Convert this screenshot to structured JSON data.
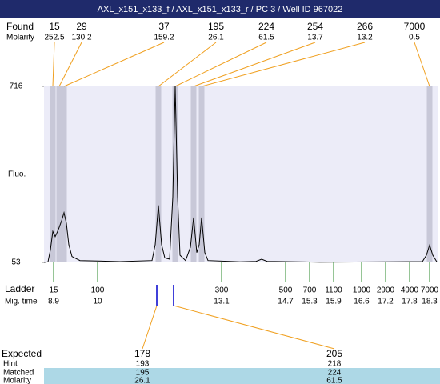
{
  "header": {
    "title": "AXL_x151_x133_f / AXL_x151_x133_r / PC 3 / Well ID 967022"
  },
  "chart_data": {
    "type": "line",
    "y_label": "Fluo.",
    "color": "#000000",
    "x": [
      8.66,
      8.76,
      8.82,
      8.88,
      8.94,
      9.0,
      9.04,
      9.1,
      9.16,
      9.22,
      9.28,
      9.36,
      9.56,
      10.56,
      11.36,
      11.44,
      11.52,
      11.6,
      11.68,
      11.8,
      11.88,
      11.94,
      12.0,
      12.06,
      12.2,
      12.32,
      12.4,
      12.48,
      12.54,
      12.6,
      12.68,
      12.76,
      13.56,
      13.96,
      14.1,
      14.24,
      15.56,
      18.12,
      18.22,
      18.3,
      18.38,
      18.48
    ],
    "values": [
      53,
      55,
      100,
      170,
      150,
      170,
      185,
      210,
      240,
      200,
      120,
      75,
      60,
      56,
      60,
      120,
      268,
      120,
      70,
      65,
      300,
      716,
      300,
      80,
      60,
      110,
      222,
      90,
      120,
      222,
      90,
      60,
      55,
      57,
      65,
      57,
      54,
      56,
      80,
      118,
      80,
      55
    ],
    "xlim": [
      8.66,
      18.52
    ],
    "ylim": [
      53,
      716
    ],
    "yticks": [
      53,
      716
    ]
  },
  "found": {
    "label": "Found",
    "molarity_label": "Molarity",
    "sizes": [
      15,
      29,
      37,
      195,
      224,
      254,
      266,
      7000
    ],
    "molarity": [
      252.5,
      130.2,
      159.2,
      26.1,
      61.5,
      13.7,
      13.2,
      0.5
    ],
    "times": [
      8.88,
      9.04,
      9.16,
      11.52,
      11.94,
      12.4,
      12.6,
      18.3
    ]
  },
  "ladder": {
    "label": "Ladder",
    "time_label": "Mig. time",
    "sizes": [
      15,
      100,
      300,
      500,
      700,
      1100,
      1900,
      2900,
      4900,
      7000
    ],
    "times": [
      8.9,
      10,
      13.1,
      14.7,
      15.3,
      15.9,
      16.6,
      17.2,
      17.8,
      18.3
    ]
  },
  "expected": {
    "labels": [
      "Expected",
      "Hint",
      "Matched",
      "Molarity"
    ],
    "expected": [
      178,
      205
    ],
    "hint": [
      193,
      218
    ],
    "matched": [
      195,
      224
    ],
    "molarity": [
      26.1,
      61.5
    ]
  }
}
